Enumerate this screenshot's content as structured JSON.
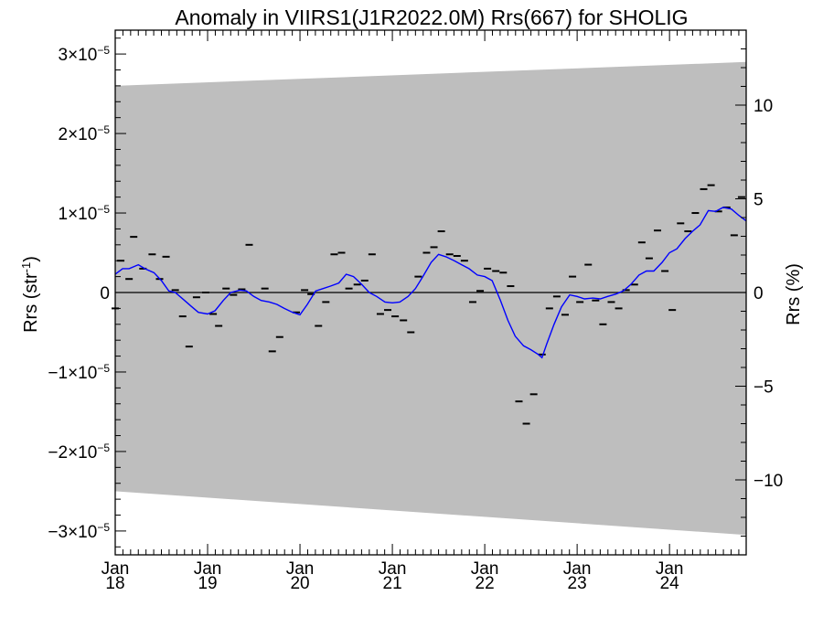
{
  "chart_data": {
    "type": "line",
    "title": "Anomaly in VIIRS1(J1R2022.0M) Rrs(667) for SHOLIG",
    "ylabel": "Rrs (str",
    "ylabel_sup": "-1",
    "ylabel_close": ")",
    "y2label": "Rrs (%)",
    "ylim": [
      -3.3e-05,
      3.3e-05
    ],
    "y2lim": [
      -14.0,
      14.0
    ],
    "xlim": [
      2018.0,
      2024.83
    ],
    "y_ticks": [
      {
        "value": -3e-05,
        "mant": "−3×10",
        "exp": "−5"
      },
      {
        "value": -2e-05,
        "mant": "−2×10",
        "exp": "−5"
      },
      {
        "value": -1e-05,
        "mant": "−1×10",
        "exp": "−5"
      },
      {
        "value": 0,
        "mant": "0",
        "exp": ""
      },
      {
        "value": 1e-05,
        "mant": "1×10",
        "exp": "−5"
      },
      {
        "value": 2e-05,
        "mant": "2×10",
        "exp": "−5"
      },
      {
        "value": 3e-05,
        "mant": "3×10",
        "exp": "−5"
      }
    ],
    "y2_ticks": [
      {
        "value": -10,
        "label": "−10"
      },
      {
        "value": -5,
        "label": "−5"
      },
      {
        "value": 0,
        "label": "0"
      },
      {
        "value": 5,
        "label": "5"
      },
      {
        "value": 10,
        "label": "10"
      }
    ],
    "x_ticks": [
      {
        "value": 2018,
        "month": "Jan",
        "year": "18"
      },
      {
        "value": 2019,
        "month": "Jan",
        "year": "19"
      },
      {
        "value": 2020,
        "month": "Jan",
        "year": "20"
      },
      {
        "value": 2021,
        "month": "Jan",
        "year": "21"
      },
      {
        "value": 2022,
        "month": "Jan",
        "year": "22"
      },
      {
        "value": 2023,
        "month": "Jan",
        "year": "23"
      },
      {
        "value": 2024,
        "month": "Jan",
        "year": "24"
      }
    ],
    "band": {
      "color": "#bebebe",
      "start": {
        "x": 2018.0,
        "upper": 2.6e-05,
        "lower": -2.5e-05
      },
      "end": {
        "x": 2024.83,
        "upper": 2.9e-05,
        "lower": -3.05e-05
      }
    },
    "zero_line": 0,
    "series": [
      {
        "marker": "dash",
        "color": "#000000",
        "points": [
          [
            2018.0,
            -2e-06
          ],
          [
            2018.06,
            4e-06
          ],
          [
            2018.15,
            1.7e-06
          ],
          [
            2018.2,
            7e-06
          ],
          [
            2018.3,
            3e-06
          ],
          [
            2018.4,
            4.8e-06
          ],
          [
            2018.48,
            1.7e-06
          ],
          [
            2018.55,
            4.5e-06
          ],
          [
            2018.65,
            3e-07
          ],
          [
            2018.73,
            -3e-06
          ],
          [
            2018.8,
            -6.8e-06
          ],
          [
            2018.88,
            -6e-07
          ],
          [
            2018.98,
            0.0
          ],
          [
            2019.06,
            -2.7e-06
          ],
          [
            2019.12,
            -4.2e-06
          ],
          [
            2019.2,
            5e-07
          ],
          [
            2019.28,
            -3e-07
          ],
          [
            2019.37,
            4e-07
          ],
          [
            2019.45,
            6e-06
          ],
          [
            2019.62,
            5e-07
          ],
          [
            2019.7,
            -7.4e-06
          ],
          [
            2019.78,
            -5.6e-06
          ],
          [
            2019.96,
            -2.5e-06
          ],
          [
            2020.05,
            3e-07
          ],
          [
            2020.12,
            -2e-07
          ],
          [
            2020.2,
            -4.2e-06
          ],
          [
            2020.28,
            -1.2e-06
          ],
          [
            2020.37,
            4.8e-06
          ],
          [
            2020.45,
            5e-06
          ],
          [
            2020.53,
            5e-07
          ],
          [
            2020.62,
            1e-06
          ],
          [
            2020.7,
            1.5e-06
          ],
          [
            2020.78,
            4.8e-06
          ],
          [
            2020.87,
            -2.7e-06
          ],
          [
            2020.95,
            -2.2e-06
          ],
          [
            2021.03,
            -3e-06
          ],
          [
            2021.12,
            -3.5e-06
          ],
          [
            2021.2,
            -5e-06
          ],
          [
            2021.28,
            2e-06
          ],
          [
            2021.37,
            5e-06
          ],
          [
            2021.45,
            5.7e-06
          ],
          [
            2021.53,
            7.7e-06
          ],
          [
            2021.62,
            4.8e-06
          ],
          [
            2021.7,
            4.6e-06
          ],
          [
            2021.78,
            4e-06
          ],
          [
            2021.87,
            -1.2e-06
          ],
          [
            2021.95,
            2e-07
          ],
          [
            2022.03,
            3e-06
          ],
          [
            2022.12,
            2.7e-06
          ],
          [
            2022.2,
            2.5e-06
          ],
          [
            2022.28,
            8e-07
          ],
          [
            2022.37,
            -1.37e-05
          ],
          [
            2022.45,
            -1.65e-05
          ],
          [
            2022.53,
            -1.28e-05
          ],
          [
            2022.62,
            -7.8e-06
          ],
          [
            2022.7,
            -2e-06
          ],
          [
            2022.78,
            -5e-07
          ],
          [
            2022.87,
            -2.8e-06
          ],
          [
            2022.95,
            2e-06
          ],
          [
            2023.03,
            -1.2e-06
          ],
          [
            2023.12,
            3.5e-06
          ],
          [
            2023.2,
            -1e-06
          ],
          [
            2023.28,
            -4e-06
          ],
          [
            2023.37,
            -1.2e-06
          ],
          [
            2023.45,
            -2e-06
          ],
          [
            2023.53,
            3e-07
          ],
          [
            2023.62,
            1e-06
          ],
          [
            2023.7,
            6.3e-06
          ],
          [
            2023.78,
            4.3e-06
          ],
          [
            2023.87,
            7.8e-06
          ],
          [
            2023.95,
            2.7e-06
          ],
          [
            2024.03,
            -2.2e-06
          ],
          [
            2024.12,
            8.7e-06
          ],
          [
            2024.2,
            7.7e-06
          ],
          [
            2024.28,
            1e-05
          ],
          [
            2024.37,
            1.3e-05
          ],
          [
            2024.45,
            1.35e-05
          ],
          [
            2024.53,
            1.02e-05
          ],
          [
            2024.62,
            1.07e-05
          ],
          [
            2024.7,
            7.2e-06
          ],
          [
            2024.78,
            1.2e-05
          ]
        ]
      },
      {
        "marker": "line",
        "color": "#0000ff",
        "points": [
          [
            2018.0,
            2.3e-06
          ],
          [
            2018.08,
            3e-06
          ],
          [
            2018.15,
            3e-06
          ],
          [
            2018.25,
            3.5e-06
          ],
          [
            2018.32,
            3e-06
          ],
          [
            2018.42,
            2.5e-06
          ],
          [
            2018.5,
            1.5e-06
          ],
          [
            2018.58,
            2e-07
          ],
          [
            2018.65,
            0.0
          ],
          [
            2018.75,
            -1e-06
          ],
          [
            2018.82,
            -1.7e-06
          ],
          [
            2018.9,
            -2.5e-06
          ],
          [
            2019.0,
            -2.7e-06
          ],
          [
            2019.08,
            -2.3e-06
          ],
          [
            2019.17,
            -1e-06
          ],
          [
            2019.25,
            0.0
          ],
          [
            2019.35,
            3e-07
          ],
          [
            2019.42,
            2e-07
          ],
          [
            2019.5,
            -5e-07
          ],
          [
            2019.58,
            -1e-06
          ],
          [
            2019.67,
            -1.2e-06
          ],
          [
            2019.75,
            -1.5e-06
          ],
          [
            2019.83,
            -2e-06
          ],
          [
            2019.92,
            -2.5e-06
          ],
          [
            2020.0,
            -2.8e-06
          ],
          [
            2020.08,
            -1.5e-06
          ],
          [
            2020.17,
            2e-07
          ],
          [
            2020.25,
            5e-07
          ],
          [
            2020.33,
            8e-07
          ],
          [
            2020.42,
            1.2e-06
          ],
          [
            2020.5,
            2.3e-06
          ],
          [
            2020.58,
            2e-06
          ],
          [
            2020.67,
            1e-06
          ],
          [
            2020.75,
            0.0
          ],
          [
            2020.83,
            -5e-07
          ],
          [
            2020.92,
            -1.2e-06
          ],
          [
            2021.0,
            -1.3e-06
          ],
          [
            2021.08,
            -1.2e-06
          ],
          [
            2021.17,
            -5e-07
          ],
          [
            2021.25,
            5e-07
          ],
          [
            2021.33,
            2e-06
          ],
          [
            2021.42,
            3.8e-06
          ],
          [
            2021.5,
            4.8e-06
          ],
          [
            2021.58,
            4.5e-06
          ],
          [
            2021.67,
            4e-06
          ],
          [
            2021.75,
            3.5e-06
          ],
          [
            2021.83,
            3e-06
          ],
          [
            2021.92,
            2.2e-06
          ],
          [
            2022.0,
            2e-06
          ],
          [
            2022.08,
            1.5e-06
          ],
          [
            2022.17,
            -1e-06
          ],
          [
            2022.25,
            -3.5e-06
          ],
          [
            2022.33,
            -5.5e-06
          ],
          [
            2022.42,
            -6.7e-06
          ],
          [
            2022.5,
            -7.2e-06
          ],
          [
            2022.58,
            -7.8e-06
          ],
          [
            2022.62,
            -8.2e-06
          ],
          [
            2022.67,
            -6.5e-06
          ],
          [
            2022.75,
            -4e-06
          ],
          [
            2022.83,
            -1.8e-06
          ],
          [
            2022.92,
            -3e-07
          ],
          [
            2023.0,
            -5e-07
          ],
          [
            2023.08,
            -8e-07
          ],
          [
            2023.17,
            -7e-07
          ],
          [
            2023.25,
            -8e-07
          ],
          [
            2023.33,
            -5e-07
          ],
          [
            2023.42,
            -2e-07
          ],
          [
            2023.5,
            2e-07
          ],
          [
            2023.58,
            1e-06
          ],
          [
            2023.67,
            2.2e-06
          ],
          [
            2023.75,
            2.7e-06
          ],
          [
            2023.83,
            2.7e-06
          ],
          [
            2023.92,
            3.8e-06
          ],
          [
            2024.0,
            5e-06
          ],
          [
            2024.08,
            5.5e-06
          ],
          [
            2024.17,
            6.8e-06
          ],
          [
            2024.25,
            7.7e-06
          ],
          [
            2024.33,
            8.5e-06
          ],
          [
            2024.42,
            1.03e-05
          ],
          [
            2024.5,
            1.02e-05
          ],
          [
            2024.58,
            1.07e-05
          ],
          [
            2024.67,
            1.05e-05
          ],
          [
            2024.75,
            9.7e-06
          ],
          [
            2024.83,
            9e-06
          ]
        ]
      }
    ]
  }
}
